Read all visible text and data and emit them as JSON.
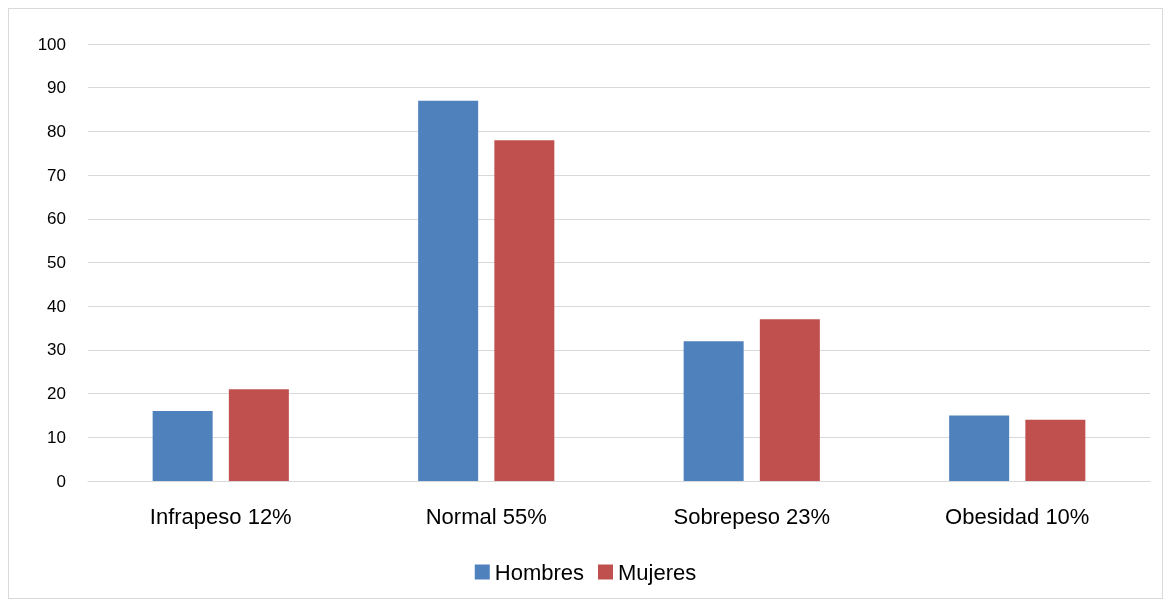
{
  "chart_data": {
    "type": "bar",
    "categories": [
      "Infrapeso 12%",
      "Normal 55%",
      "Sobrepeso 23%",
      "Obesidad 10%"
    ],
    "series": [
      {
        "name": "Hombres",
        "color": "#4f81bd",
        "values": [
          16,
          87,
          32,
          15
        ]
      },
      {
        "name": "Mujeres",
        "color": "#c0504d",
        "values": [
          21,
          78,
          37,
          14
        ]
      }
    ],
    "ylim": [
      0,
      100
    ],
    "yticks": [
      0,
      10,
      20,
      30,
      40,
      50,
      60,
      70,
      80,
      90,
      100
    ],
    "grid": "y",
    "legend": "bottom"
  }
}
